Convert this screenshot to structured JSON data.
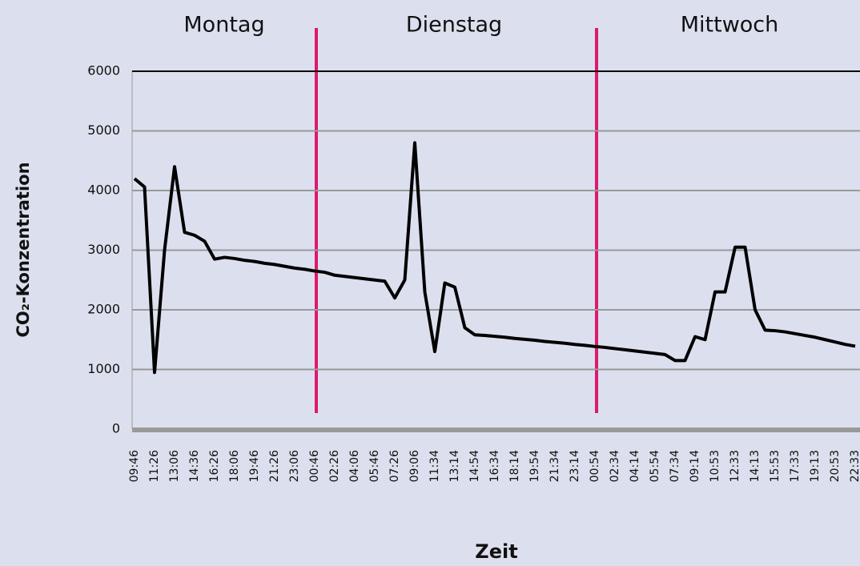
{
  "chart_data": {
    "type": "line",
    "ylabel": "CO₂-Konzentration",
    "xlabel": "Zeit",
    "annotations": [
      "Montag",
      "Dienstag",
      "Mittwoch"
    ],
    "categories": [
      "09:46",
      null,
      "11:26",
      null,
      "13:06",
      null,
      "14:36",
      null,
      "16:26",
      null,
      "18:06",
      null,
      "19:46",
      null,
      "21:26",
      null,
      "23:06",
      null,
      "00:46",
      null,
      "02:26",
      null,
      "04:06",
      null,
      "05:46",
      null,
      "07:26",
      null,
      "09:06",
      null,
      "11:34",
      null,
      "13:14",
      null,
      "14:54",
      null,
      "16:34",
      null,
      "18:14",
      null,
      "19:54",
      null,
      "21:34",
      null,
      "23:14",
      null,
      "00:54",
      null,
      "02:34",
      null,
      "04:14",
      null,
      "05:54",
      null,
      "07:34",
      null,
      "09:14",
      null,
      "10:53",
      null,
      "12:33",
      null,
      "14:13",
      null,
      "15:53",
      null,
      "17:33",
      null,
      "19:13",
      null,
      "20:53",
      null,
      "22:33"
    ],
    "series": [
      {
        "color": "#000000",
        "values": [
          4200,
          4060,
          950,
          3000,
          4400,
          3300,
          3250,
          3150,
          2850,
          2880,
          2860,
          2830,
          2810,
          2780,
          2760,
          2730,
          2700,
          2680,
          2650,
          2630,
          2580,
          2560,
          2540,
          2520,
          2500,
          2480,
          2200,
          2500,
          4800,
          2300,
          1300,
          2450,
          2380,
          1700,
          1580,
          1570,
          1555,
          1540,
          1520,
          1505,
          1490,
          1470,
          1455,
          1440,
          1420,
          1405,
          1385,
          1370,
          1350,
          1330,
          1310,
          1290,
          1270,
          1250,
          1150,
          1150,
          1550,
          1500,
          2300,
          2300,
          3050,
          3050,
          2000,
          1660,
          1650,
          1630,
          1600,
          1570,
          1540,
          1500,
          1460,
          1420,
          1390
        ]
      }
    ],
    "ylim": [
      0,
      6000
    ],
    "yticks": [
      0,
      1000,
      2000,
      3000,
      4000,
      5000,
      6000
    ],
    "grid": true
  }
}
